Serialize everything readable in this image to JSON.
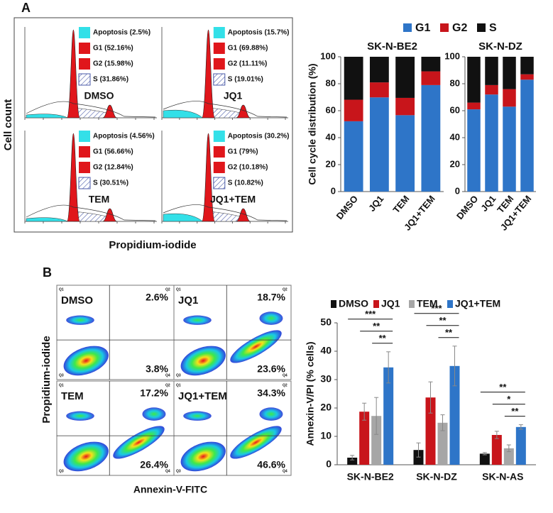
{
  "panels": {
    "a": {
      "label": "A",
      "x_label": "Propidium-iodide",
      "y_label": "Cell count",
      "histograms": [
        {
          "name": "DMSO",
          "legend": [
            "Apoptosis (2.5%)",
            "G1 (52.16%)",
            "G2 (15.98%)",
            "S (31.86%)"
          ]
        },
        {
          "name": "JQ1",
          "legend": [
            "Apoptosis (15.7%)",
            "G1 (69.88%)",
            "G2 (11.11%)",
            "S (19.01%)"
          ]
        },
        {
          "name": "TEM",
          "legend": [
            "Apoptosis (4.56%)",
            "G1 (56.66%)",
            "G2 (12.84%)",
            "S (30.51%)"
          ]
        },
        {
          "name": "JQ1+TEM",
          "legend": [
            "Apoptosis (30.2%)",
            "G1 (79%)",
            "G2 (10.18%)",
            "S (10.82%)"
          ]
        }
      ]
    },
    "b": {
      "label": "B",
      "x_label": "Annexin-V-FITC",
      "y_label": "Propidium-iodide",
      "quadrant_labels": [
        "Q1",
        "Q2",
        "Q3",
        "Q4"
      ],
      "plots": [
        {
          "name": "DMSO",
          "upper_right": "2.6%",
          "lower_right": "3.8%"
        },
        {
          "name": "JQ1",
          "upper_right": "18.7%",
          "lower_right": "23.6%"
        },
        {
          "name": "TEM",
          "upper_right": "17.2%",
          "lower_right": "26.4%"
        },
        {
          "name": "JQ1+TEM",
          "upper_right": "34.3%",
          "lower_right": "46.6%"
        }
      ]
    }
  },
  "chart_data": [
    {
      "type": "stacked-bar",
      "y_label": "Cell cycle distribution (%)",
      "facets": [
        "SK-N-BE2",
        "SK-N-DZ"
      ],
      "categories": [
        "DMSO",
        "JQ1",
        "TEM",
        "JQ1+TEM"
      ],
      "ylim": [
        0,
        100
      ],
      "yticks": [
        0,
        20,
        40,
        60,
        80,
        100
      ],
      "series": [
        {
          "name": "G1",
          "color": "#2e75c8",
          "values": [
            [
              52.16,
              69.88,
              56.66,
              79
            ],
            [
              61,
              72,
              63,
              83
            ]
          ]
        },
        {
          "name": "G2",
          "color": "#c8151b",
          "values": [
            [
              15.98,
              11.11,
              12.84,
              10.18
            ],
            [
              5,
              7,
              13,
              4
            ]
          ]
        },
        {
          "name": "S",
          "color": "#111111",
          "values": [
            [
              31.86,
              19.01,
              30.51,
              10.82
            ],
            [
              34,
              21,
              24,
              13
            ]
          ]
        }
      ]
    },
    {
      "type": "bar",
      "y_label": "Annexin-V/PI  (% cells)",
      "categories": [
        "SK-N-BE2",
        "SK-N-DZ",
        "SK-N-AS"
      ],
      "ylim": [
        0,
        50
      ],
      "yticks": [
        0,
        10,
        20,
        30,
        40,
        50
      ],
      "series": [
        {
          "name": "DMSO",
          "color": "#111111",
          "values": [
            2.5,
            5.2,
            3.9
          ],
          "errors": [
            0.8,
            2.5,
            0.4
          ]
        },
        {
          "name": "JQ1",
          "color": "#c8151b",
          "values": [
            18.7,
            23.7,
            10.5
          ],
          "errors": [
            3,
            5.5,
            1.3
          ]
        },
        {
          "name": "TEM",
          "color": "#a6a6a6",
          "values": [
            17.2,
            14.8,
            5.8
          ],
          "errors": [
            6.5,
            2.8,
            1.2
          ]
        },
        {
          "name": "JQ1+TEM",
          "color": "#2e75c8",
          "values": [
            34.3,
            34.8,
            13.3
          ],
          "errors": [
            5.5,
            7,
            0.8
          ]
        }
      ],
      "significance": [
        [
          "***",
          "**",
          "**"
        ],
        [
          "***",
          "**",
          "**"
        ],
        [
          "**",
          "*",
          "**"
        ]
      ]
    }
  ]
}
